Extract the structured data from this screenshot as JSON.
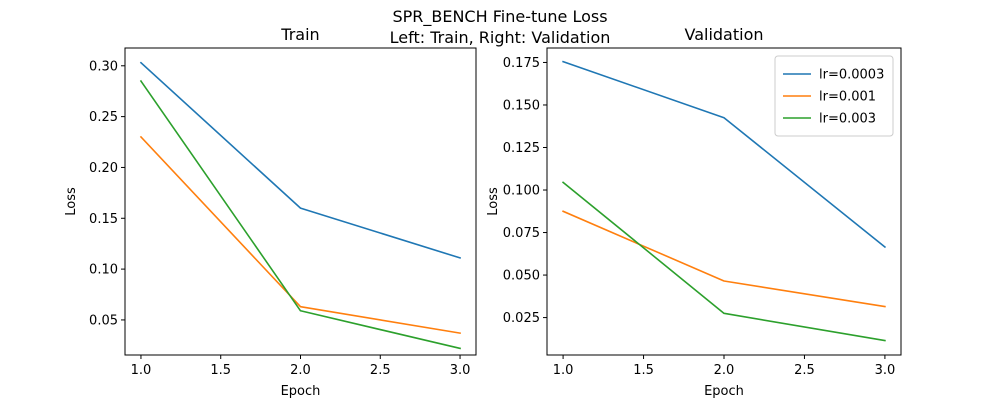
{
  "figure": {
    "suptitle_line1": "SPR_BENCH Fine-tune Loss",
    "suptitle_line2": "Left: Train, Right: Validation"
  },
  "colors": {
    "lr=0.0003": "#1f77b4",
    "lr=0.001": "#ff7f0e",
    "lr=0.003": "#2ca02c"
  },
  "chart_data": [
    {
      "type": "line",
      "title": "Train",
      "xlabel": "Epoch",
      "ylabel": "Loss",
      "x": [
        1.0,
        2.0,
        3.0
      ],
      "xlim": [
        0.9,
        3.1
      ],
      "ylim": [
        0.0155,
        0.3175
      ],
      "xticks": [
        1.0,
        1.5,
        2.0,
        2.5,
        3.0
      ],
      "xtick_labels": [
        "1.0",
        "1.5",
        "2.0",
        "2.5",
        "3.0"
      ],
      "yticks": [
        0.05,
        0.1,
        0.15,
        0.2,
        0.25,
        0.3
      ],
      "ytick_labels": [
        "0.05",
        "0.10",
        "0.15",
        "0.20",
        "0.25",
        "0.30"
      ],
      "grid": false,
      "legend": null,
      "series": [
        {
          "name": "lr=0.0003",
          "values": [
            0.303,
            0.16,
            0.111
          ]
        },
        {
          "name": "lr=0.001",
          "values": [
            0.23,
            0.063,
            0.037
          ]
        },
        {
          "name": "lr=0.003",
          "values": [
            0.285,
            0.059,
            0.022
          ]
        }
      ]
    },
    {
      "type": "line",
      "title": "Validation",
      "xlabel": "Epoch",
      "ylabel": "Loss",
      "x": [
        1.0,
        2.0,
        3.0
      ],
      "xlim": [
        0.9,
        3.1
      ],
      "ylim": [
        0.003,
        0.1835
      ],
      "xticks": [
        1.0,
        1.5,
        2.0,
        2.5,
        3.0
      ],
      "xtick_labels": [
        "1.0",
        "1.5",
        "2.0",
        "2.5",
        "3.0"
      ],
      "yticks": [
        0.025,
        0.05,
        0.075,
        0.1,
        0.125,
        0.15,
        0.175
      ],
      "ytick_labels": [
        "0.025",
        "0.050",
        "0.075",
        "0.100",
        "0.125",
        "0.150",
        "0.175"
      ],
      "grid": false,
      "legend": "top-right",
      "series": [
        {
          "name": "lr=0.0003",
          "values": [
            0.1755,
            0.1425,
            0.0665
          ]
        },
        {
          "name": "lr=0.001",
          "values": [
            0.0875,
            0.0465,
            0.0315
          ]
        },
        {
          "name": "lr=0.003",
          "values": [
            0.1045,
            0.0275,
            0.0115
          ]
        }
      ]
    }
  ]
}
